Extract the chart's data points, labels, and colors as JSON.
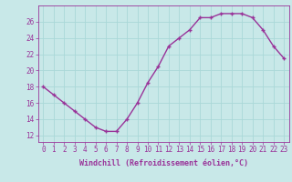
{
  "x": [
    0,
    1,
    2,
    3,
    4,
    5,
    6,
    7,
    8,
    9,
    10,
    11,
    12,
    13,
    14,
    15,
    16,
    17,
    18,
    19,
    20,
    21,
    22,
    23
  ],
  "y": [
    18,
    17,
    16,
    15,
    14,
    13,
    12.5,
    12.5,
    14,
    16,
    18.5,
    20.5,
    23,
    24,
    25,
    26.5,
    26.5,
    27,
    27,
    27,
    26.5,
    25,
    23,
    21.5
  ],
  "line_color": "#993399",
  "marker": "+",
  "marker_size": 3.5,
  "bg_color": "#c8e8e8",
  "grid_color": "#aad8d8",
  "xlabel": "Windchill (Refroidissement éolien,°C)",
  "xlabel_fontsize": 6.0,
  "xtick_labels": [
    "0",
    "1",
    "2",
    "3",
    "4",
    "5",
    "6",
    "7",
    "8",
    "9",
    "10",
    "11",
    "12",
    "13",
    "14",
    "15",
    "16",
    "17",
    "18",
    "19",
    "20",
    "21",
    "22",
    "23"
  ],
  "ytick_values": [
    12,
    14,
    16,
    18,
    20,
    22,
    24,
    26
  ],
  "ylim": [
    11.2,
    28.0
  ],
  "xlim": [
    -0.5,
    23.5
  ],
  "tick_color": "#993399",
  "tick_fontsize": 5.5,
  "line_width": 1.0,
  "marker_edge_width": 1.0
}
